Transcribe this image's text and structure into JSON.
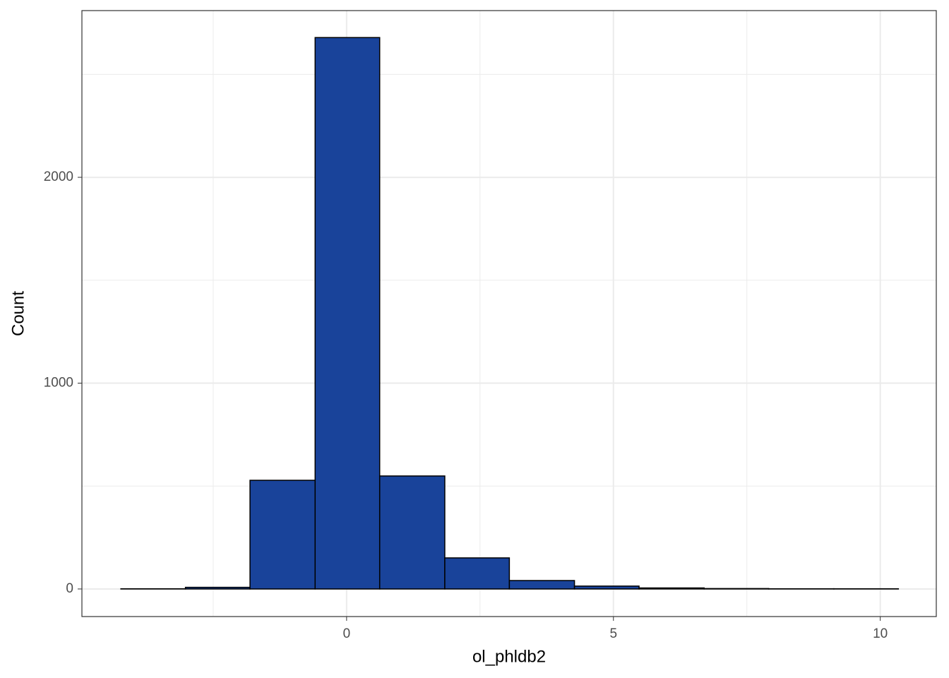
{
  "chart_data": {
    "type": "histogram",
    "x_label": "ol_phldb2",
    "y_label": "Count",
    "bins": [
      -4.23,
      -3.02,
      -1.81,
      -0.59,
      0.62,
      1.84,
      3.05,
      4.27,
      5.48,
      6.7,
      7.91,
      9.13,
      10.34
    ],
    "values": [
      1,
      8,
      528,
      2679,
      549,
      151,
      41,
      14,
      5,
      2,
      1,
      1
    ],
    "color": "#19439a",
    "edge_color": "#000000",
    "xlim": [
      -4.96,
      11.05
    ],
    "ylim": [
      -134,
      2810
    ],
    "xticks": [
      0,
      5,
      10
    ],
    "yticks": [
      0,
      1000,
      2000
    ],
    "x_minor_ticks": [
      -2.5,
      2.5,
      7.5
    ],
    "y_minor_ticks": [
      500,
      1500,
      2500
    ],
    "grid": true
  }
}
